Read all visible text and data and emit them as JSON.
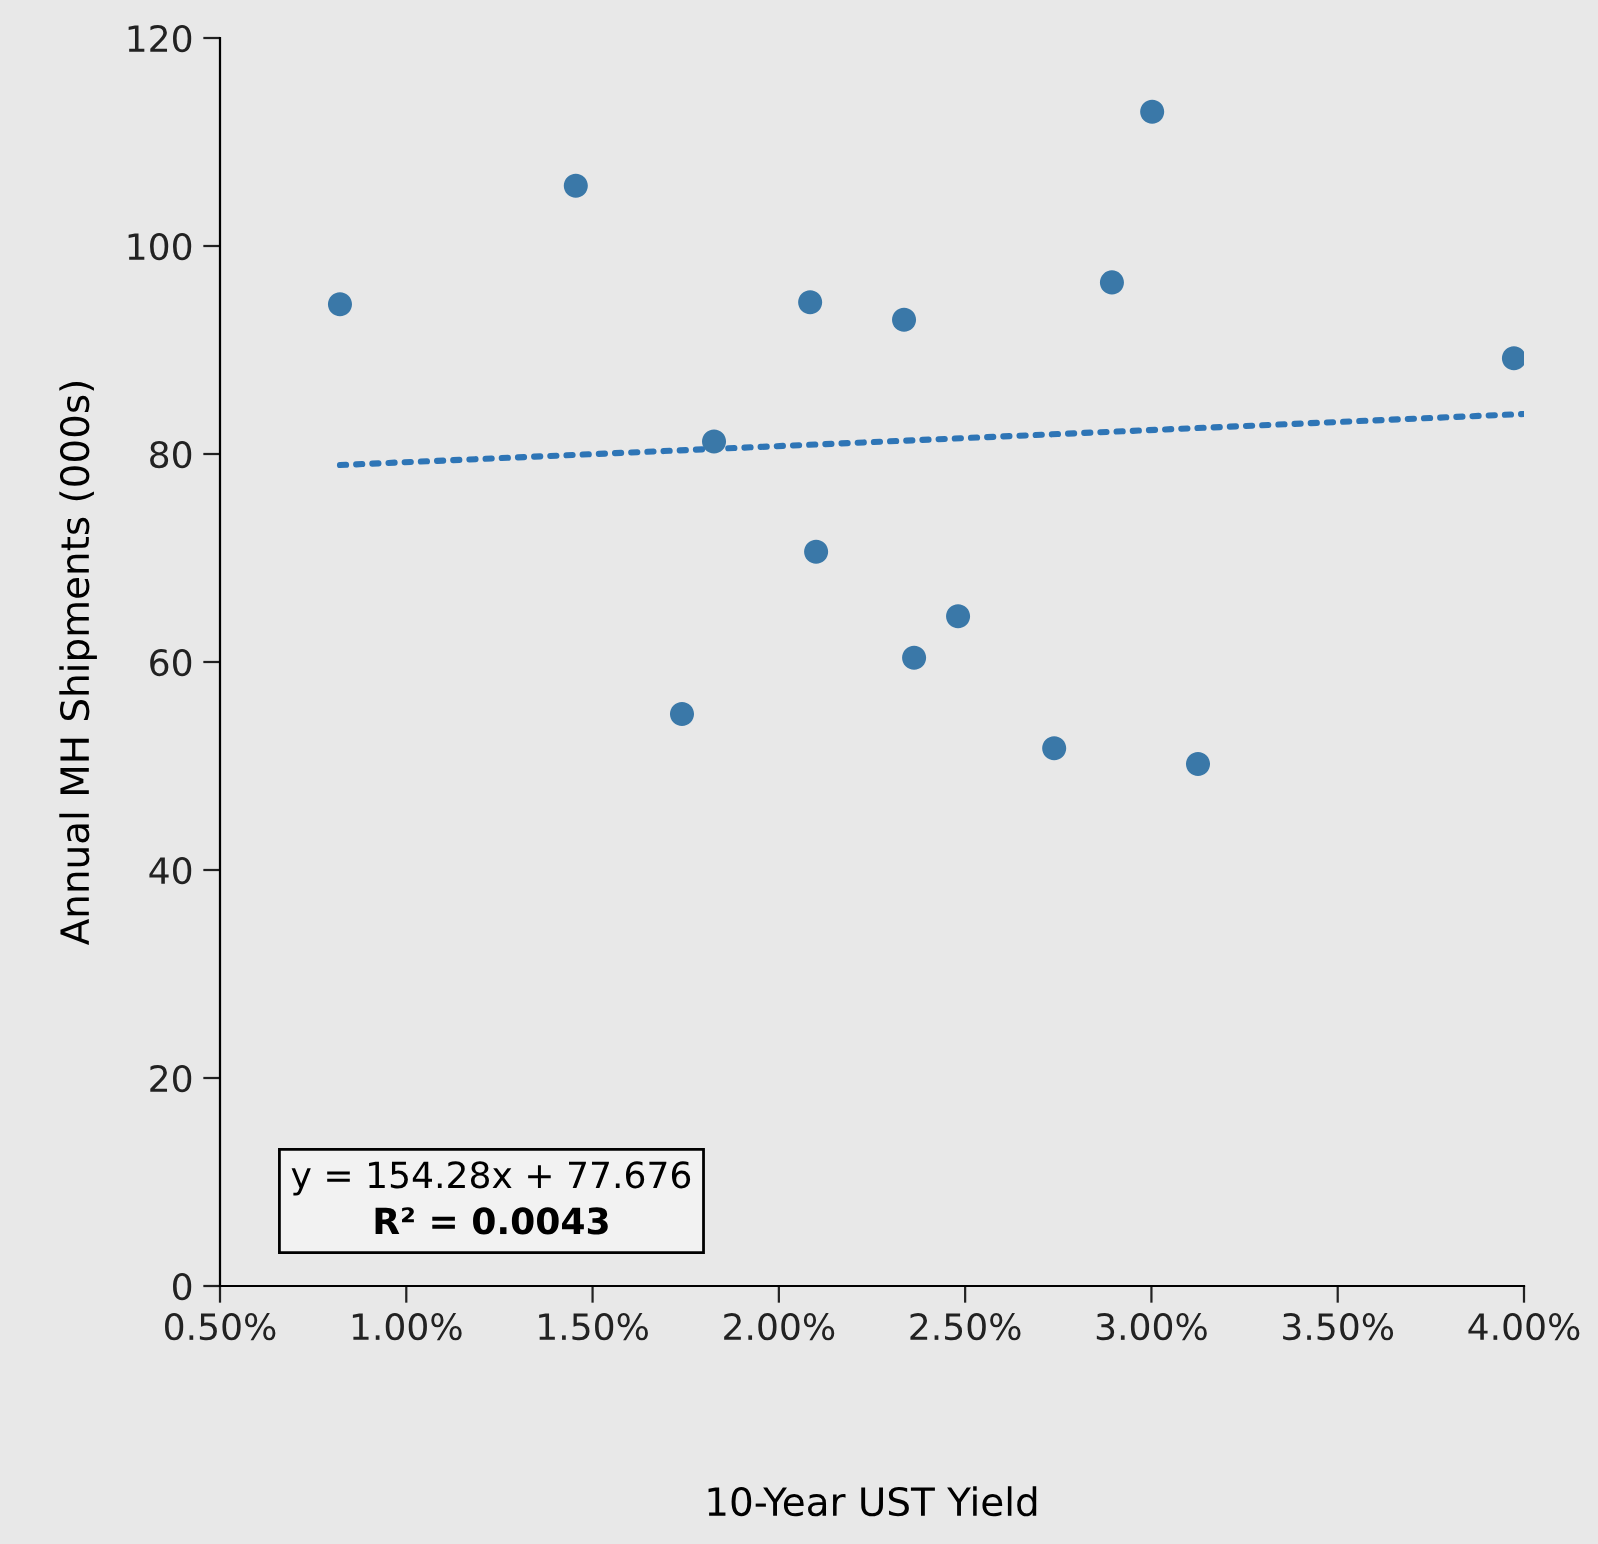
{
  "chart_data": {
    "type": "scatter",
    "xlabel": "10-Year UST Yield",
    "ylabel": "Annual MH Shipments (000s)",
    "x": [
      0.00822,
      0.01455,
      0.0174,
      0.01826,
      0.02084,
      0.021,
      0.02336,
      0.02363,
      0.02481,
      0.02739,
      0.02894,
      0.03002,
      0.03125,
      0.03973
    ],
    "series": [
      {
        "color": "#3a78a8",
        "values": [
          94.4,
          105.8,
          55.0,
          81.2,
          94.6,
          70.6,
          92.9,
          60.4,
          64.4,
          51.7,
          96.5,
          112.9,
          50.2,
          89.2
        ],
        "marker": "circle"
      },
      {
        "type": "line",
        "color": "#2e75b6",
        "line_style": "dotted",
        "x": [
          0.00822,
          0.04
        ],
        "values": [
          78.94,
          83.85
        ]
      }
    ],
    "xlim": [
      0.005,
      0.04
    ],
    "xticks": [
      {
        "value": 0.005,
        "label": "0.50%"
      },
      {
        "value": 0.01,
        "label": "1.00%"
      },
      {
        "value": 0.015,
        "label": "1.50%"
      },
      {
        "value": 0.02,
        "label": "2.00%"
      },
      {
        "value": 0.025,
        "label": "2.50%"
      },
      {
        "value": 0.03,
        "label": "3.00%"
      },
      {
        "value": 0.035,
        "label": "3.50%"
      },
      {
        "value": 0.04,
        "label": "4.00%"
      }
    ],
    "ylim": [
      0,
      120
    ],
    "yticks": [
      0,
      20,
      40,
      60,
      80,
      100,
      120
    ],
    "grid": false,
    "legend": false,
    "annotations": [
      "y = 154.28x + 77.676",
      "R² = 0.0043"
    ]
  }
}
